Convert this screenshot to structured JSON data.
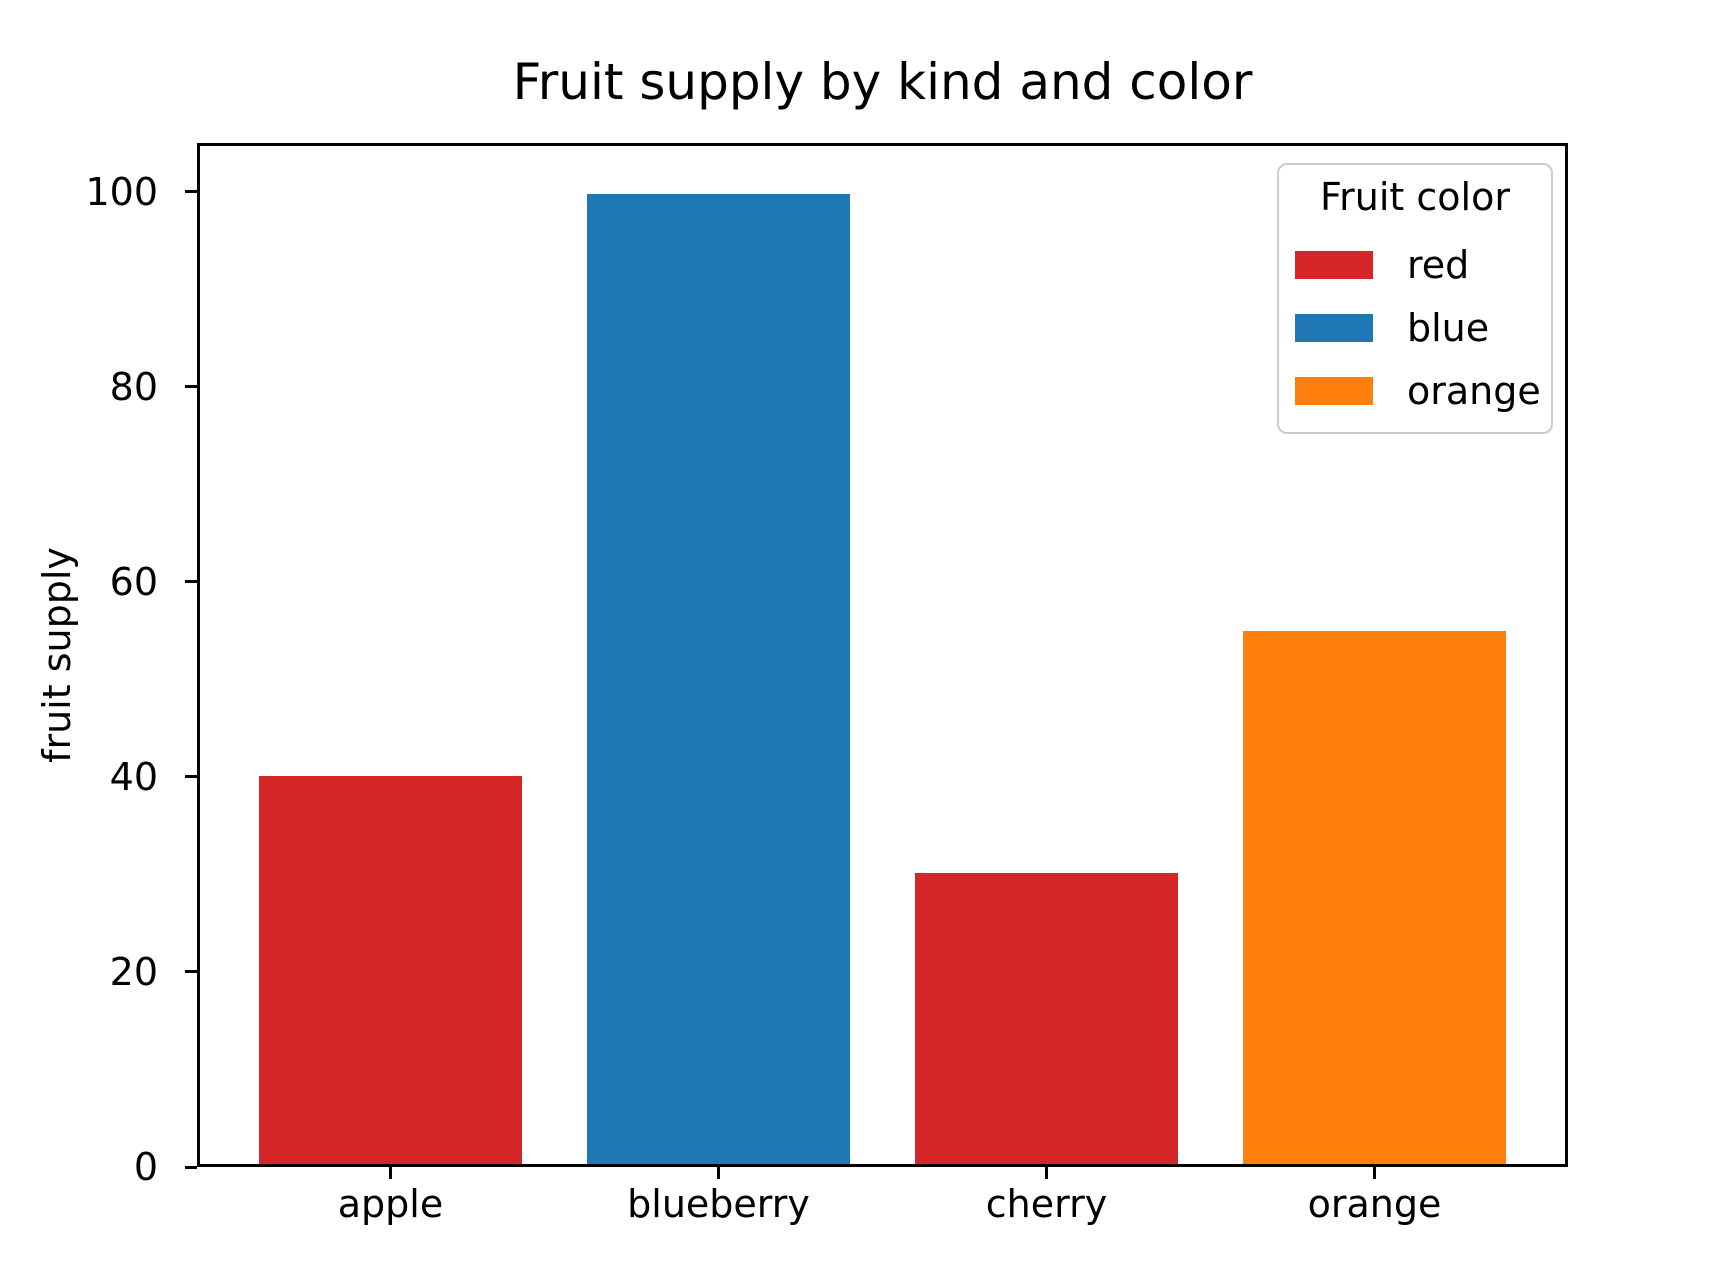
{
  "figure": {
    "background": "#ffffff",
    "axis_color": "#000000",
    "legend_border_color": "#cccccc"
  },
  "chart_data": {
    "type": "bar",
    "title": "Fruit supply by kind and color",
    "xlabel": "",
    "ylabel": "fruit supply",
    "categories": [
      "apple",
      "blueberry",
      "cherry",
      "orange"
    ],
    "values": [
      40,
      100,
      30,
      55
    ],
    "bar_colors": [
      "#d62728",
      "#1f77b4",
      "#d62728",
      "#ff7f0e"
    ],
    "yticks": [
      0,
      20,
      40,
      60,
      80,
      100
    ],
    "ylim": [
      0,
      105
    ],
    "bar_width_units": 0.8,
    "x_margin_units": 0.59,
    "grid": false,
    "legend": {
      "title": "Fruit color",
      "position": "upper right",
      "entries": [
        {
          "label": "red",
          "color": "#d62728"
        },
        {
          "label": "blue",
          "color": "#1f77b4"
        },
        {
          "label": "orange",
          "color": "#ff7f0e"
        }
      ]
    }
  }
}
